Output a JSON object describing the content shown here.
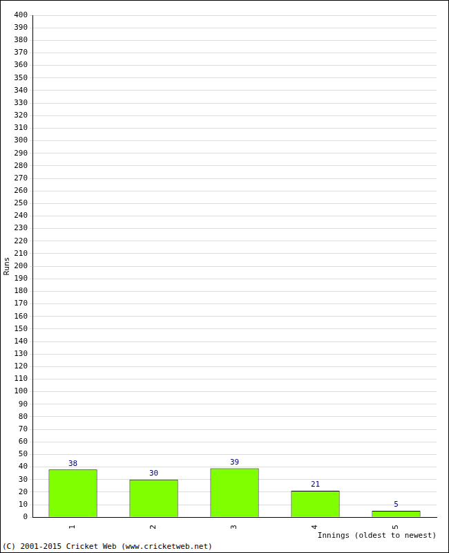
{
  "chart_data": {
    "type": "bar",
    "categories": [
      "1",
      "2",
      "3",
      "4",
      "5"
    ],
    "values": [
      38,
      30,
      39,
      21,
      5
    ],
    "color": "#80ff00",
    "y_label": "Runs",
    "x_label": "Innings (oldest to newest)",
    "annotations": [
      "(C) 2001-2015 Cricket Web (www.cricketweb.net)"
    ],
    "ylim": [
      0,
      400
    ],
    "yticks": [
      0,
      10,
      20,
      30,
      40,
      50,
      60,
      70,
      80,
      90,
      100,
      110,
      120,
      130,
      140,
      150,
      160,
      170,
      180,
      190,
      200,
      210,
      220,
      230,
      240,
      250,
      260,
      270,
      280,
      290,
      300,
      310,
      320,
      330,
      340,
      350,
      360,
      370,
      380,
      390,
      400
    ],
    "grid": true,
    "data_labels": true
  }
}
